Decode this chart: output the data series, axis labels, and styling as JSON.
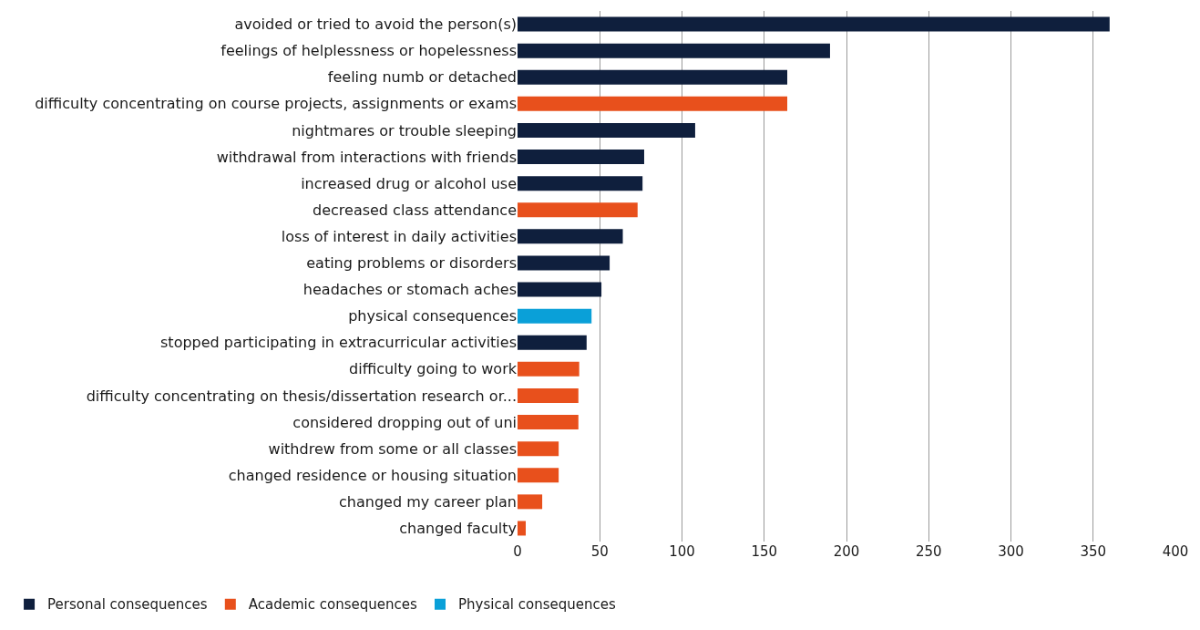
{
  "chart_data": {
    "type": "bar",
    "orientation": "horizontal",
    "stacked": true,
    "categories": [
      "avoided or tried to avoid the person(s)",
      "feelings of helplessness or hopelessness",
      "feeling numb or detached",
      "difficulty concentrating on course projects, assignments or exams",
      "nightmares or trouble sleeping",
      "withdrawal from interactions with friends",
      "increased drug or alcohol use",
      "decreased class attendance",
      "loss of interest in daily activities",
      "eating problems or disorders",
      "headaches or stomach aches",
      "physical consequences",
      "stopped participating in extracurricular activities",
      "difficulty going to work",
      "difficulty concentrating on thesis/dissertation research or...",
      "considered dropping out of uni",
      "withdrew from some or all classes",
      "changed residence or housing situation",
      "changed my career plan",
      "changed faculty"
    ],
    "series": [
      {
        "name": "Personal consequences",
        "color": "#0f1f3d",
        "values": [
          360,
          190,
          164,
          null,
          108,
          77,
          76,
          null,
          64,
          56,
          51,
          null,
          42,
          null,
          null,
          null,
          null,
          null,
          null,
          null
        ]
      },
      {
        "name": "Academic consequences",
        "color": "#e8501c",
        "values": [
          null,
          null,
          null,
          164,
          null,
          null,
          null,
          73,
          null,
          null,
          null,
          null,
          null,
          37.5,
          37,
          37,
          25,
          25,
          15,
          5
        ]
      },
      {
        "name": "Physical consequences",
        "color": "#0aa0d8",
        "values": [
          null,
          null,
          null,
          null,
          null,
          null,
          null,
          null,
          null,
          null,
          null,
          45,
          null,
          null,
          null,
          null,
          null,
          null,
          null,
          null
        ]
      }
    ],
    "xlim": [
      0,
      400
    ],
    "xticks": [
      0,
      50,
      100,
      150,
      200,
      250,
      300,
      350,
      400
    ],
    "grid": "x",
    "legend": "bottom left"
  }
}
